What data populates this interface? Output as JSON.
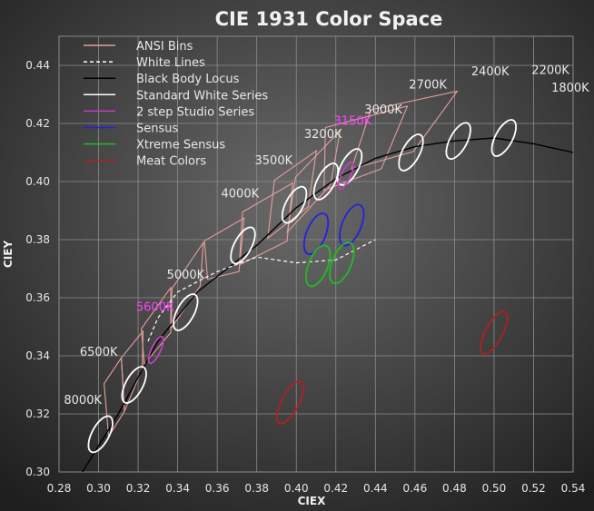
{
  "chart_data": {
    "type": "scatter",
    "title": "CIE 1931 Color Space",
    "xlabel": "CIEX",
    "ylabel": "CIEY",
    "xlim": [
      0.28,
      0.54
    ],
    "ylim": [
      0.3,
      0.45
    ],
    "x_ticks": [
      "0.28",
      "0.30",
      "0.32",
      "0.34",
      "0.36",
      "0.38",
      "0.40",
      "0.42",
      "0.44",
      "0.46",
      "0.48",
      "0.50",
      "0.52",
      "0.54"
    ],
    "y_ticks": [
      "0.30",
      "0.32",
      "0.34",
      "0.36",
      "0.38",
      "0.40",
      "0.42",
      "0.44"
    ],
    "grid": true,
    "legend_position": "top-left",
    "colors": {
      "ansi_bins": "#e2a09a",
      "white_lines": "#ffffff",
      "black_body": "#000000",
      "standard_white": "#ffffff",
      "studio": "#c040c0",
      "sensus": "#2222dd",
      "xtreme": "#22bb22",
      "meat": "#b02020",
      "magenta_label": "#ff44ff"
    },
    "legend": [
      {
        "label": "ANSI Bins",
        "color": "#e2a09a",
        "dash": false
      },
      {
        "label": "White Lines",
        "color": "#ffffff",
        "dash": true
      },
      {
        "label": "Black Body Locus",
        "color": "#000000",
        "dash": false
      },
      {
        "label": "Standard White Series",
        "color": "#ffffff",
        "dash": false
      },
      {
        "label": "2 step Studio Series",
        "color": "#c040c0",
        "dash": false
      },
      {
        "label": "Sensus",
        "color": "#2222dd",
        "dash": false
      },
      {
        "label": "Xtreme Sensus",
        "color": "#22bb22",
        "dash": false
      },
      {
        "label": "Meat Colors",
        "color": "#b02020",
        "dash": false
      }
    ],
    "black_body_locus": [
      [
        0.29,
        0.298
      ],
      [
        0.31,
        0.32
      ],
      [
        0.33,
        0.345
      ],
      [
        0.35,
        0.362
      ],
      [
        0.38,
        0.378
      ],
      [
        0.4,
        0.391
      ],
      [
        0.42,
        0.401
      ],
      [
        0.44,
        0.408
      ],
      [
        0.46,
        0.412
      ],
      [
        0.48,
        0.414
      ],
      [
        0.5,
        0.415
      ],
      [
        0.52,
        0.413
      ],
      [
        0.54,
        0.41
      ]
    ],
    "white_lines": [
      [
        0.325,
        0.345
      ],
      [
        0.33,
        0.353
      ],
      [
        0.34,
        0.362
      ],
      [
        0.36,
        0.369
      ],
      [
        0.38,
        0.374
      ],
      [
        0.4,
        0.372
      ],
      [
        0.42,
        0.373
      ],
      [
        0.44,
        0.38
      ]
    ],
    "ansi_bins": [
      [
        [
          0.3028,
          0.3304
        ],
        [
          0.3115,
          0.3393
        ],
        [
          0.3131,
          0.3209
        ],
        [
          0.3051,
          0.3122
        ]
      ],
      [
        [
          0.3115,
          0.3393
        ],
        [
          0.3225,
          0.3485
        ],
        [
          0.3221,
          0.3355
        ],
        [
          0.3131,
          0.3209
        ]
      ],
      [
        [
          0.3216,
          0.3493
        ],
        [
          0.3365,
          0.3635
        ],
        [
          0.3365,
          0.348
        ],
        [
          0.3231,
          0.3371
        ]
      ],
      [
        [
          0.3371,
          0.3631
        ],
        [
          0.353,
          0.379
        ],
        [
          0.3514,
          0.364
        ],
        [
          0.3368,
          0.3495
        ]
      ],
      [
        [
          0.3536,
          0.3796
        ],
        [
          0.3736,
          0.3874
        ],
        [
          0.371,
          0.369
        ],
        [
          0.3551,
          0.3664
        ]
      ],
      [
        [
          0.3728,
          0.3895
        ],
        [
          0.3982,
          0.3995
        ],
        [
          0.3953,
          0.3795
        ],
        [
          0.3712,
          0.3713
        ]
      ],
      [
        [
          0.3889,
          0.4004
        ],
        [
          0.4102,
          0.4106
        ],
        [
          0.406,
          0.3913
        ],
        [
          0.3856,
          0.3805
        ]
      ],
      [
        [
          0.3996,
          0.4015
        ],
        [
          0.4222,
          0.4176
        ],
        [
          0.4172,
          0.3987
        ],
        [
          0.3955,
          0.3826
        ]
      ],
      [
        [
          0.4148,
          0.4186
        ],
        [
          0.4562,
          0.426
        ],
        [
          0.443,
          0.4044
        ],
        [
          0.414,
          0.397
        ]
      ],
      [
        [
          0.4377,
          0.4247
        ],
        [
          0.4814,
          0.4311
        ],
        [
          0.4591,
          0.4103
        ],
        [
          0.4279,
          0.4043
        ]
      ]
    ],
    "standard_white_series": [
      [
        0.301,
        0.313
      ],
      [
        0.318,
        0.33
      ],
      [
        0.344,
        0.355
      ],
      [
        0.373,
        0.378
      ],
      [
        0.399,
        0.392
      ],
      [
        0.415,
        0.4
      ],
      [
        0.427,
        0.405
      ],
      [
        0.458,
        0.41
      ],
      [
        0.482,
        0.414
      ],
      [
        0.505,
        0.415
      ]
    ],
    "studio_series": [
      [
        0.329,
        0.342
      ],
      [
        0.425,
        0.402
      ]
    ],
    "sensus": [
      [
        0.41,
        0.382
      ],
      [
        0.428,
        0.385
      ]
    ],
    "xtreme_sensus": [
      [
        0.411,
        0.371
      ],
      [
        0.423,
        0.372
      ]
    ],
    "meat_colors": [
      [
        0.397,
        0.324
      ],
      [
        0.5,
        0.348
      ]
    ],
    "cct_labels": [
      {
        "text": "8000K",
        "x": 0.2825,
        "y": 0.3235,
        "color": "#e8e8e8"
      },
      {
        "text": "6500K",
        "x": 0.2905,
        "y": 0.34,
        "color": "#e8e8e8"
      },
      {
        "text": "5600K",
        "x": 0.319,
        "y": 0.3555,
        "color": "#ff44ff"
      },
      {
        "text": "5000K",
        "x": 0.3345,
        "y": 0.3665,
        "color": "#e8e8e8"
      },
      {
        "text": "4000K",
        "x": 0.362,
        "y": 0.3945,
        "color": "#e8e8e8"
      },
      {
        "text": "3500K",
        "x": 0.379,
        "y": 0.406,
        "color": "#e8e8e8"
      },
      {
        "text": "3200K",
        "x": 0.404,
        "y": 0.415,
        "color": "#e8e8e8"
      },
      {
        "text": "3150K",
        "x": 0.419,
        "y": 0.4195,
        "color": "#ff44ff"
      },
      {
        "text": "3000K",
        "x": 0.4345,
        "y": 0.4235,
        "color": "#e8e8e8"
      },
      {
        "text": "2700K",
        "x": 0.457,
        "y": 0.432,
        "color": "#e8e8e8"
      },
      {
        "text": "2400K",
        "x": 0.4885,
        "y": 0.4365,
        "color": "#e8e8e8"
      },
      {
        "text": "2200K",
        "x": 0.519,
        "y": 0.437,
        "color": "#e8e8e8"
      },
      {
        "text": "1800K",
        "x": 0.529,
        "y": 0.431,
        "color": "#e8e8e8"
      }
    ]
  }
}
